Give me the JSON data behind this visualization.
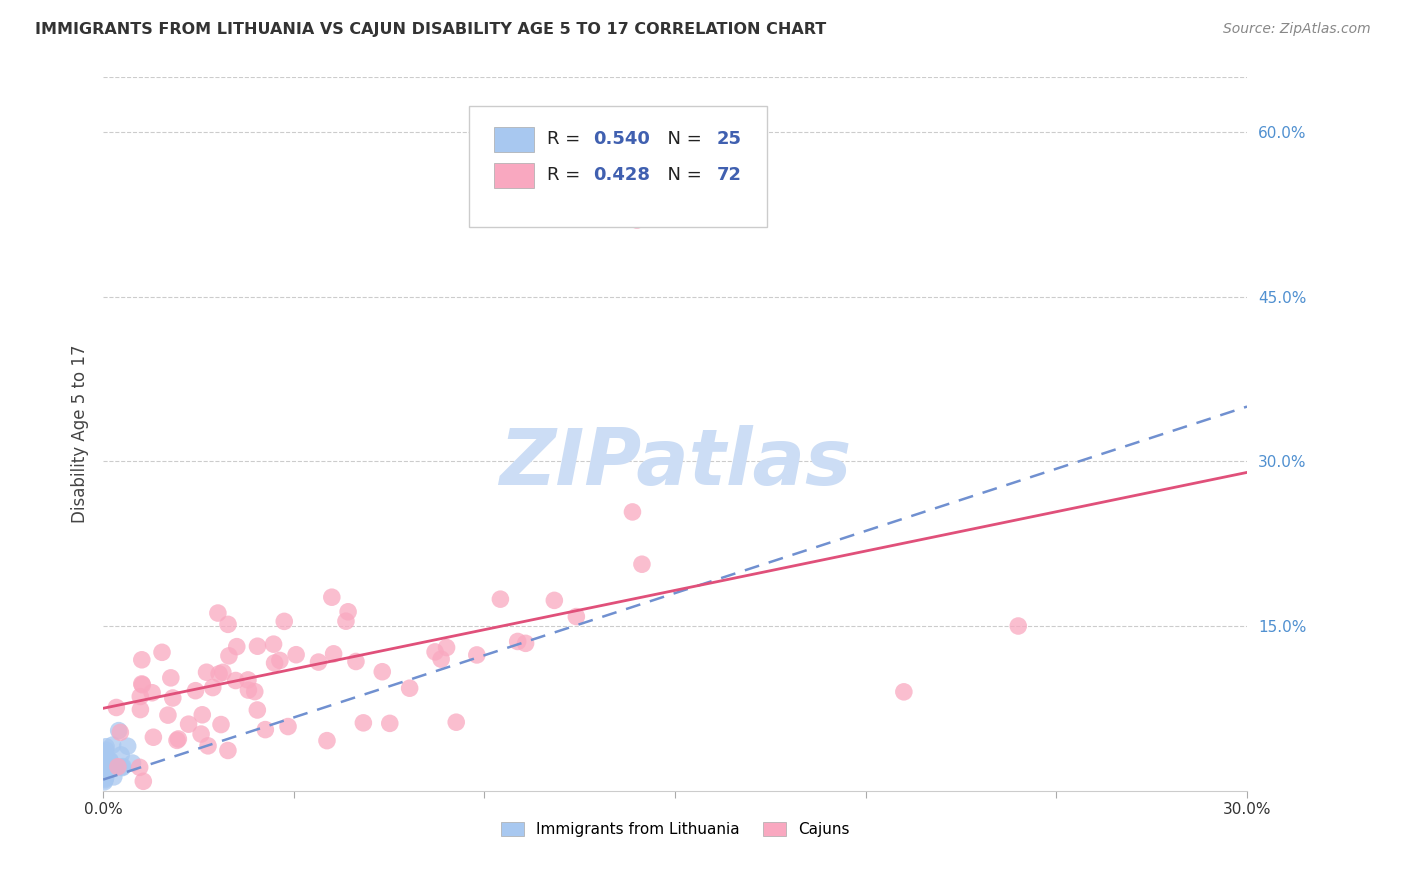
{
  "title": "IMMIGRANTS FROM LITHUANIA VS CAJUN DISABILITY AGE 5 TO 17 CORRELATION CHART",
  "source": "Source: ZipAtlas.com",
  "ylabel": "Disability Age 5 to 17",
  "xlim": [
    0.0,
    0.3
  ],
  "ylim": [
    0.0,
    0.65
  ],
  "xticks": [
    0.0,
    0.05,
    0.1,
    0.15,
    0.2,
    0.25,
    0.3
  ],
  "xtick_labels": [
    "0.0%",
    "",
    "",
    "",
    "",
    "",
    "30.0%"
  ],
  "ytick_labels_right": [
    "60.0%",
    "45.0%",
    "30.0%",
    "15.0%"
  ],
  "yticks_right": [
    0.6,
    0.45,
    0.3,
    0.15
  ],
  "series1_color": "#a8c8f0",
  "series2_color": "#f9a8c0",
  "series1_line_color": "#7090d0",
  "series2_line_color": "#e0507a",
  "watermark_color": "#ccddf5",
  "background_color": "#ffffff",
  "grid_color": "#cccccc",
  "R1": 0.54,
  "N1": 25,
  "R2": 0.428,
  "N2": 72,
  "legend_R1": "0.540",
  "legend_N1": "25",
  "legend_R2": "0.428",
  "legend_N2": "72",
  "legend_color_R": "#4060b0",
  "legend_color_N": "#4060b0",
  "title_color": "#333333",
  "source_color": "#888888",
  "ylabel_color": "#444444",
  "right_tick_color": "#5090d0",
  "bottom_tick_color": "#333333"
}
